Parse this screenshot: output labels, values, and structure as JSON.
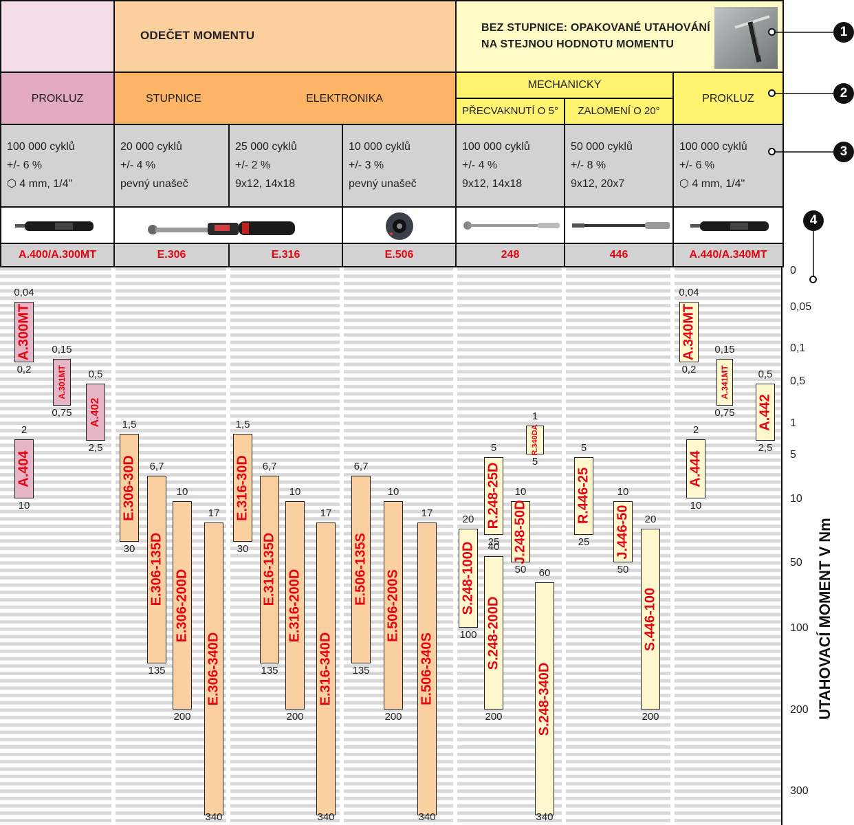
{
  "header": {
    "top_left": "",
    "odecet": "ODEČET MOMENTU",
    "bez_line1": "BEZ STUPNICE: OPAKOVANÉ UTAHOVÁNÍ",
    "bez_line2": "NA STEJNOU HODNOTU MOMENTU"
  },
  "types": {
    "prokluz_left": "PROKLUZ",
    "stupnice": "STUPNICE",
    "elektronika": "ELEKTRONIKA",
    "mechanicky": "MECHANICKY",
    "precvaknuti": "PŘECVAKNUTÍ O 5°",
    "zalomeni": "ZALOMENÍ O 20°",
    "prokluz_right": "PROKLUZ"
  },
  "callouts": [
    "1",
    "2",
    "3",
    "4"
  ],
  "columns": [
    {
      "specs": [
        "100 000 cyklů",
        "+/- 6 %",
        "⬡ 4 mm, 1/4\""
      ],
      "model": "A.400/A.300MT",
      "tool": "screwdriver-icon"
    },
    {
      "specs": [
        "20 000 cyklů",
        "+/- 4 %",
        "pevný unašeč"
      ],
      "model": "E.306",
      "tool": "torque-wrench-icon"
    },
    {
      "specs": [
        "25 000 cyklů",
        "+/- 2 %",
        "9x12, 14x18"
      ],
      "model": "E.316",
      "tool": "torque-wrench-icon"
    },
    {
      "specs": [
        "10 000 cyklů",
        "+/- 3 %",
        "pevný unašeč"
      ],
      "model": "E.506",
      "tool": "torque-adapter-icon"
    },
    {
      "specs": [
        "100 000 cyklů",
        "+/- 4 %",
        "9x12, 14x18"
      ],
      "model": "248",
      "tool": "click-wrench-icon"
    },
    {
      "specs": [
        "50 000 cyklů",
        "+/- 8 %",
        "9x12, 20x7"
      ],
      "model": "446",
      "tool": "break-wrench-icon"
    },
    {
      "specs": [
        "100 000 cyklů",
        "+/- 6 %",
        "⬡ 4 mm, 1/4\""
      ],
      "model": "A.440/A.340MT",
      "tool": "screwdriver-icon"
    }
  ],
  "colors": {
    "pink": "#e7b6c6",
    "orange": "#fbd0a1",
    "yellow": "#fff8cf",
    "red": "#e30613",
    "grid": "#d9d9d9"
  },
  "chart_data": {
    "type": "bar",
    "ylabel": "UTAHOVACÍ MOMENT V Nm",
    "y_ticks": [
      "0",
      "0,05",
      "0,1",
      "0,5",
      "1",
      "5",
      "10",
      "50",
      "100",
      "200",
      "300"
    ],
    "y_tick_values": [
      0,
      0.05,
      0.1,
      0.5,
      1,
      5,
      10,
      50,
      100,
      200,
      300
    ],
    "series": [
      {
        "name": "A.300MT",
        "min": 0.04,
        "max": 0.2,
        "min_label": "0,04",
        "max_label": "0,2",
        "color": "pink"
      },
      {
        "name": "A.301MT",
        "min": 0.15,
        "max": 0.75,
        "min_label": "0,15",
        "max_label": "0,75",
        "color": "pink"
      },
      {
        "name": "A.402",
        "min": 0.5,
        "max": 2.5,
        "min_label": "0,5",
        "max_label": "2,5",
        "color": "pink"
      },
      {
        "name": "A.404",
        "min": 2,
        "max": 10,
        "min_label": "2",
        "max_label": "10",
        "color": "pink"
      },
      {
        "name": "E.306-30D",
        "min": 1.5,
        "max": 30,
        "min_label": "1,5",
        "max_label": "30",
        "color": "orange"
      },
      {
        "name": "E.306-135D",
        "min": 6.7,
        "max": 135,
        "min_label": "6,7",
        "max_label": "135",
        "color": "orange"
      },
      {
        "name": "E.306-200D",
        "min": 10,
        "max": 200,
        "min_label": "10",
        "max_label": "200",
        "color": "orange"
      },
      {
        "name": "E.306-340D",
        "min": 17,
        "max": 340,
        "min_label": "17",
        "max_label": "340",
        "color": "orange"
      },
      {
        "name": "E.316-30D",
        "min": 1.5,
        "max": 30,
        "min_label": "1,5",
        "max_label": "30",
        "color": "orange"
      },
      {
        "name": "E.316-135D",
        "min": 6.7,
        "max": 135,
        "min_label": "6,7",
        "max_label": "135",
        "color": "orange"
      },
      {
        "name": "E.316-200D",
        "min": 10,
        "max": 200,
        "min_label": "10",
        "max_label": "200",
        "color": "orange"
      },
      {
        "name": "E.316-340D",
        "min": 17,
        "max": 340,
        "min_label": "17",
        "max_label": "340",
        "color": "orange"
      },
      {
        "name": "E.506-135S",
        "min": 6.7,
        "max": 135,
        "min_label": "6,7",
        "max_label": "135",
        "color": "orange"
      },
      {
        "name": "E.506-200S",
        "min": 10,
        "max": 200,
        "min_label": "10",
        "max_label": "200",
        "color": "orange"
      },
      {
        "name": "E.506-340S",
        "min": 17,
        "max": 340,
        "min_label": "17",
        "max_label": "340",
        "color": "orange"
      },
      {
        "name": "S.248-100D",
        "min": 20,
        "max": 100,
        "min_label": "20",
        "max_label": "100",
        "color": "yellow"
      },
      {
        "name": "R.248-25D",
        "min": 5,
        "max": 25,
        "min_label": "5",
        "max_label": "25",
        "color": "yellow"
      },
      {
        "name": "S.248-200D",
        "min": 40,
        "max": 200,
        "min_label": "40",
        "max_label": "200",
        "color": "yellow"
      },
      {
        "name": "J.248-50D",
        "min": 10,
        "max": 50,
        "min_label": "10",
        "max_label": "50",
        "color": "yellow"
      },
      {
        "name": "R.340DA",
        "min": 1,
        "max": 5,
        "min_label": "1",
        "max_label": "5",
        "color": "yellow"
      },
      {
        "name": "S.248-340D",
        "min": 60,
        "max": 340,
        "min_label": "60",
        "max_label": "340",
        "color": "yellow"
      },
      {
        "name": "R.446-25",
        "min": 5,
        "max": 25,
        "min_label": "5",
        "max_label": "25",
        "color": "yellow"
      },
      {
        "name": "J.446-50",
        "min": 10,
        "max": 50,
        "min_label": "10",
        "max_label": "50",
        "color": "yellow"
      },
      {
        "name": "S.446-100",
        "min": 20,
        "max": 200,
        "min_label": "20",
        "max_label": "200",
        "color": "yellow"
      },
      {
        "name": "A.340MT",
        "min": 0.04,
        "max": 0.2,
        "min_label": "0,04",
        "max_label": "0,2",
        "color": "yellow"
      },
      {
        "name": "A.341MT",
        "min": 0.15,
        "max": 0.75,
        "min_label": "0,15",
        "max_label": "0,75",
        "color": "yellow"
      },
      {
        "name": "A.442",
        "min": 0.5,
        "max": 2.5,
        "min_label": "0,5",
        "max_label": "2,5",
        "color": "yellow"
      },
      {
        "name": "A.444",
        "min": 2,
        "max": 10,
        "min_label": "2",
        "max_label": "10",
        "color": "yellow"
      }
    ]
  }
}
